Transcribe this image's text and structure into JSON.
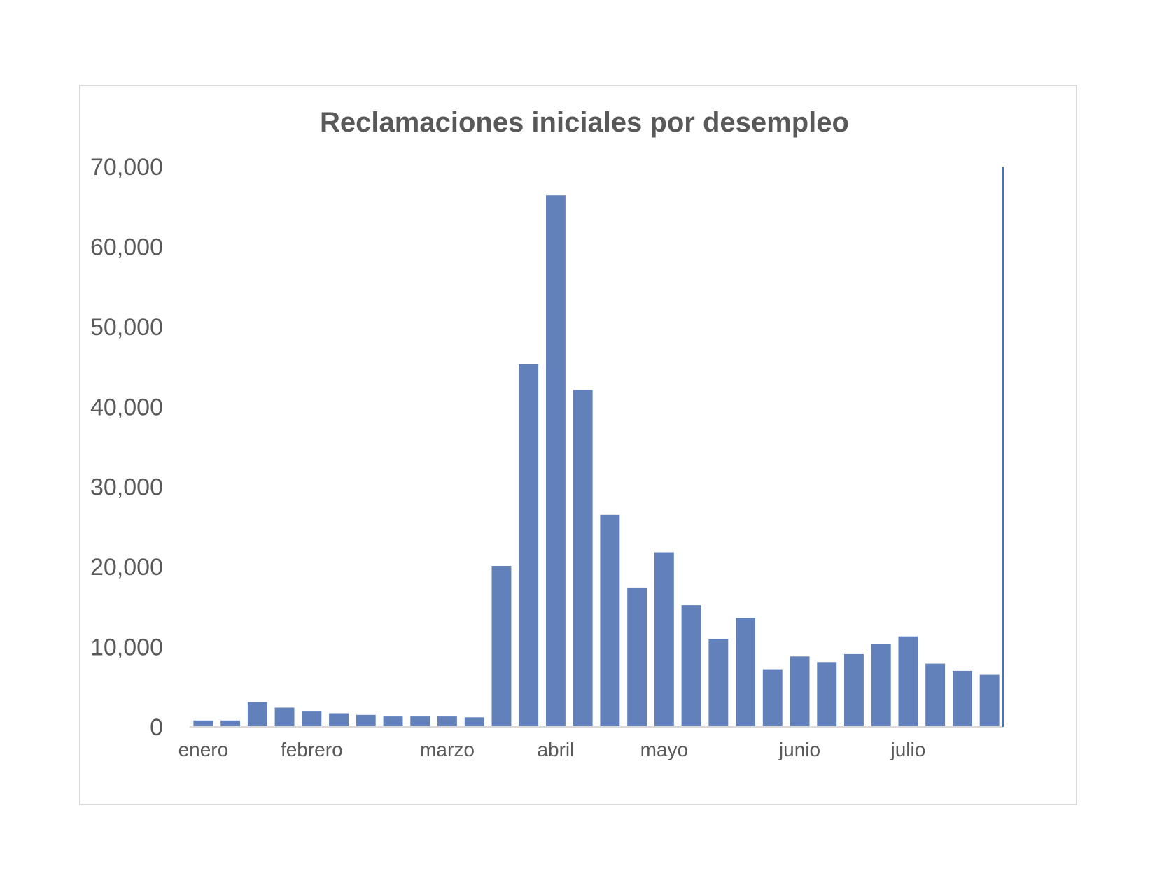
{
  "chart_data": {
    "type": "bar",
    "title": "Reclamaciones iniciales por desempleo",
    "xlabel": "",
    "ylabel": "",
    "ylim": [
      0,
      70000
    ],
    "yticks": [
      "0",
      "10,000",
      "20,000",
      "30,000",
      "40,000",
      "50,000",
      "60,000",
      "70,000"
    ],
    "month_labels": [
      {
        "label": "enero",
        "bar_index": 0.5
      },
      {
        "label": "febrero",
        "bar_index": 4.5
      },
      {
        "label": "marzo",
        "bar_index": 9.5
      },
      {
        "label": "abril",
        "bar_index": 13.5
      },
      {
        "label": "mayo",
        "bar_index": 17.5
      },
      {
        "label": "junio",
        "bar_index": 22.5
      },
      {
        "label": "julio",
        "bar_index": 26.5
      }
    ],
    "values": [
      800,
      800,
      3100,
      2400,
      2000,
      1700,
      1500,
      1300,
      1300,
      1300,
      1200,
      20100,
      45300,
      66400,
      42100,
      26500,
      17400,
      21800,
      15200,
      11000,
      13600,
      7200,
      8800,
      8100,
      9100,
      10400,
      11300,
      7900,
      7000,
      6500
    ],
    "bar_color": "#6281bb",
    "axis_color": "#d9d9d9",
    "right_line_color": "#4472c4",
    "grid": false
  }
}
